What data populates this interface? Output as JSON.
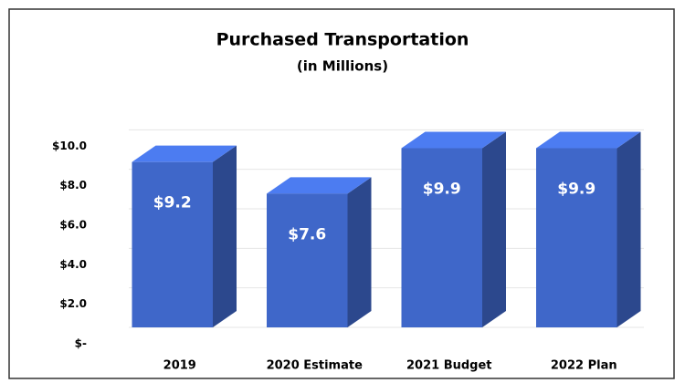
{
  "chart_data": {
    "type": "bar3d",
    "title": "Purchased Transportation",
    "subtitle": "(in Millions)",
    "categories": [
      "2019",
      "2020 Estimate",
      "2021 Budget",
      "2022 Plan"
    ],
    "values": [
      9.2,
      7.6,
      9.9,
      9.9
    ],
    "value_labels": [
      "$9.2",
      "$7.6",
      "$9.9",
      "$9.9"
    ],
    "color": "#3f67c9",
    "ylim": [
      0,
      12
    ],
    "yticks": [
      {
        "value": 0,
        "label": "$-"
      },
      {
        "value": 2,
        "label": "$2.0"
      },
      {
        "value": 4,
        "label": "$4.0"
      },
      {
        "value": 6,
        "label": "$6.0"
      },
      {
        "value": 8,
        "label": "$8.0"
      },
      {
        "value": 10,
        "label": "$10.0"
      }
    ],
    "grid": true
  }
}
